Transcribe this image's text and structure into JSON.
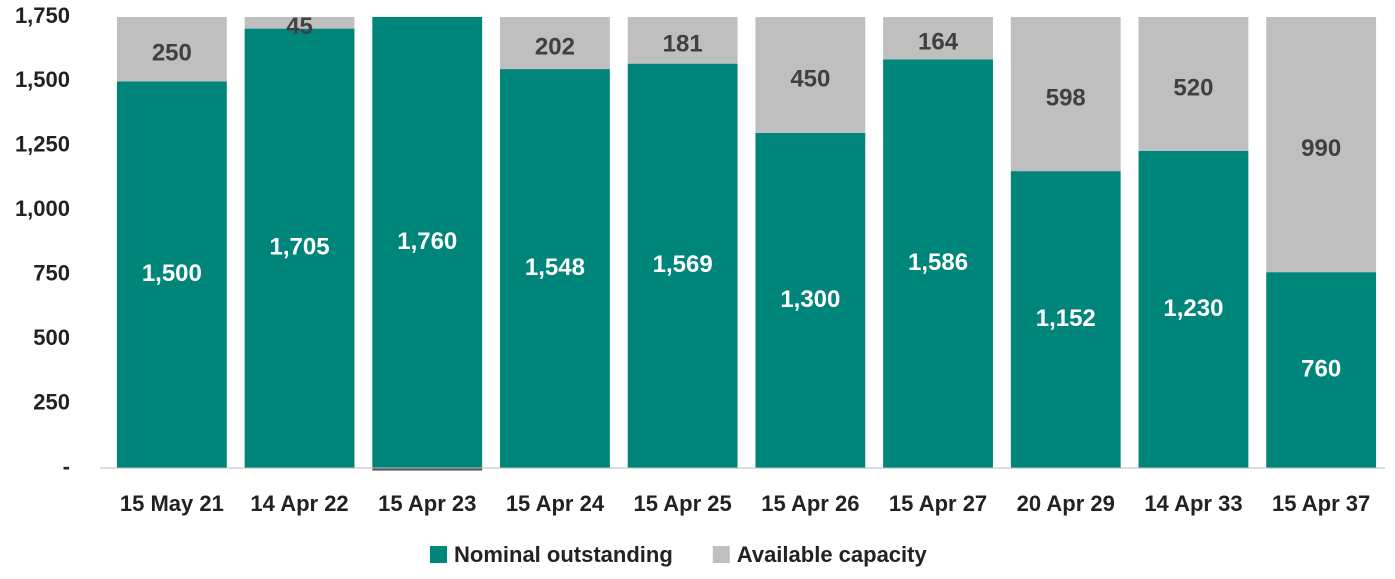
{
  "chart_data": {
    "type": "stacked_bar",
    "categories": [
      "15 May 21",
      "14 Apr 22",
      "15 Apr 23",
      "15 Apr 24",
      "15 Apr 25",
      "15 Apr 26",
      "15 Apr 27",
      "20 Apr 29",
      "14 Apr 33",
      "15 Apr 37"
    ],
    "series": [
      {
        "name": "Nominal outstanding",
        "color": "#00857a",
        "values": [
          1500,
          1705,
          1760,
          1548,
          1569,
          1300,
          1586,
          1152,
          1230,
          760
        ],
        "value_labels": [
          "1,500",
          "1,705",
          "1,760",
          "1,548",
          "1,569",
          "1,300",
          "1,586",
          "1,152",
          "1,230",
          "760"
        ]
      },
      {
        "name": "Available capacity",
        "color": "#bfbfbf",
        "values": [
          250,
          45,
          -10,
          202,
          181,
          450,
          164,
          598,
          520,
          990
        ],
        "value_labels": [
          "250",
          "45",
          null,
          "202",
          "181",
          "450",
          "164",
          "598",
          "520",
          "990"
        ]
      }
    ],
    "ylim": [
      0,
      1750
    ],
    "yticks": [
      {
        "value": 0,
        "label": "-"
      },
      250,
      500,
      750,
      {
        "value": 1000,
        "label": "1,000"
      },
      {
        "value": 1250,
        "label": "1,250"
      },
      {
        "value": 1500,
        "label": "1,500"
      },
      {
        "value": 1750,
        "label": "1,750"
      }
    ],
    "legend": "bottom"
  }
}
